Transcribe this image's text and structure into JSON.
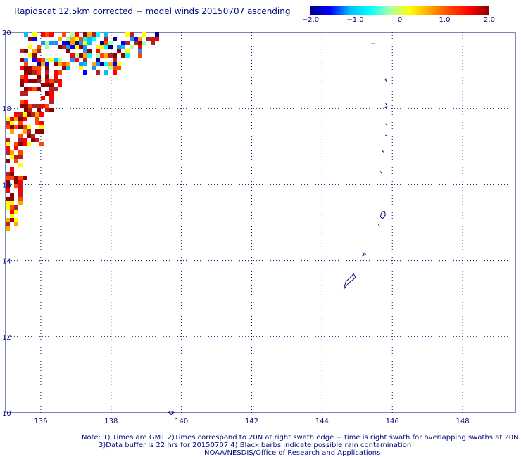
{
  "title": "Rapidscat 12.5km corrected − model winds 20150707 ascending",
  "colorbar": {
    "labels": [
      "−2.0",
      "−1.0",
      "0",
      "1.0",
      "2.0"
    ],
    "stops": [
      "#00008b",
      "#0000ff",
      "#00bfff",
      "#00ffff",
      "#aaffaa",
      "#ffff00",
      "#ffa500",
      "#ff4500",
      "#ff0000",
      "#8b0000"
    ]
  },
  "map": {
    "lon_ticks": [
      "136",
      "138",
      "140",
      "142",
      "144",
      "146",
      "148"
    ],
    "lat_ticks": [
      "10",
      "12",
      "14",
      "16",
      "18",
      "20"
    ],
    "lon_range": [
      135,
      149.5
    ],
    "lat_range": [
      10,
      20
    ],
    "gridline_color": "#000c7a",
    "coast_color": "#000c7a"
  },
  "notes": {
    "line1": "Note: 1) Times are GMT 2)Times correspond to 20N at right swath edge − time is right swath for overlapping swaths at 20N",
    "line2": "3)Data buffer is 22 hrs for 20150707 4) Black barbs indicate possible rain contamination",
    "line3": "NOAA/NESDIS/Office of Research and Applications"
  }
}
